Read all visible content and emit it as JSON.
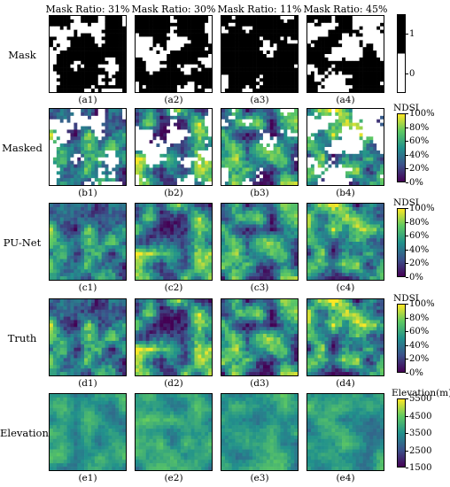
{
  "columns": [
    "Mask Ratio: 31%",
    "Mask Ratio: 30%",
    "Mask Ratio: 11%",
    "Mask Ratio: 45%"
  ],
  "rows": [
    {
      "label": "Mask",
      "captions": [
        "(a1)",
        "(a2)",
        "(a3)",
        "(a4)"
      ],
      "kind": "mask"
    },
    {
      "label": "Masked",
      "captions": [
        "(b1)",
        "(b2)",
        "(b3)",
        "(b4)"
      ],
      "kind": "masked"
    },
    {
      "label": "PU-Net",
      "captions": [
        "(c1)",
        "(c2)",
        "(c3)",
        "(c4)"
      ],
      "kind": "ndsi"
    },
    {
      "label": "Truth",
      "captions": [
        "(d1)",
        "(d2)",
        "(d3)",
        "(d4)"
      ],
      "kind": "ndsi"
    },
    {
      "label": "Elevation",
      "captions": [
        "(e1)",
        "(e2)",
        "(e3)",
        "(e4)"
      ],
      "kind": "elev"
    }
  ],
  "mask_ratios": [
    0.31,
    0.3,
    0.11,
    0.45
  ],
  "colorbars": [
    {
      "title": "",
      "ticks": [
        "1",
        "0"
      ],
      "kind": "binary"
    },
    {
      "title": "NDSI",
      "ticks": [
        "100%",
        "80%",
        "60%",
        "40%",
        "20%",
        "0%"
      ],
      "kind": "viridis"
    },
    {
      "title": "NDSI",
      "ticks": [
        "100%",
        "80%",
        "60%",
        "40%",
        "20%",
        "0%"
      ],
      "kind": "viridis"
    },
    {
      "title": "NDSI",
      "ticks": [
        "100%",
        "80%",
        "60%",
        "40%",
        "20%",
        "0%"
      ],
      "kind": "viridis"
    },
    {
      "title": "Elevation(m)",
      "ticks": [
        "5500",
        "4500",
        "3500",
        "2500",
        "1500"
      ],
      "kind": "viridis"
    }
  ],
  "colors": {
    "mask_on": "#ffffff",
    "mask_off": "#000000",
    "viridis": [
      "#440154",
      "#3b528b",
      "#21918c",
      "#5ec962",
      "#fde725"
    ]
  }
}
